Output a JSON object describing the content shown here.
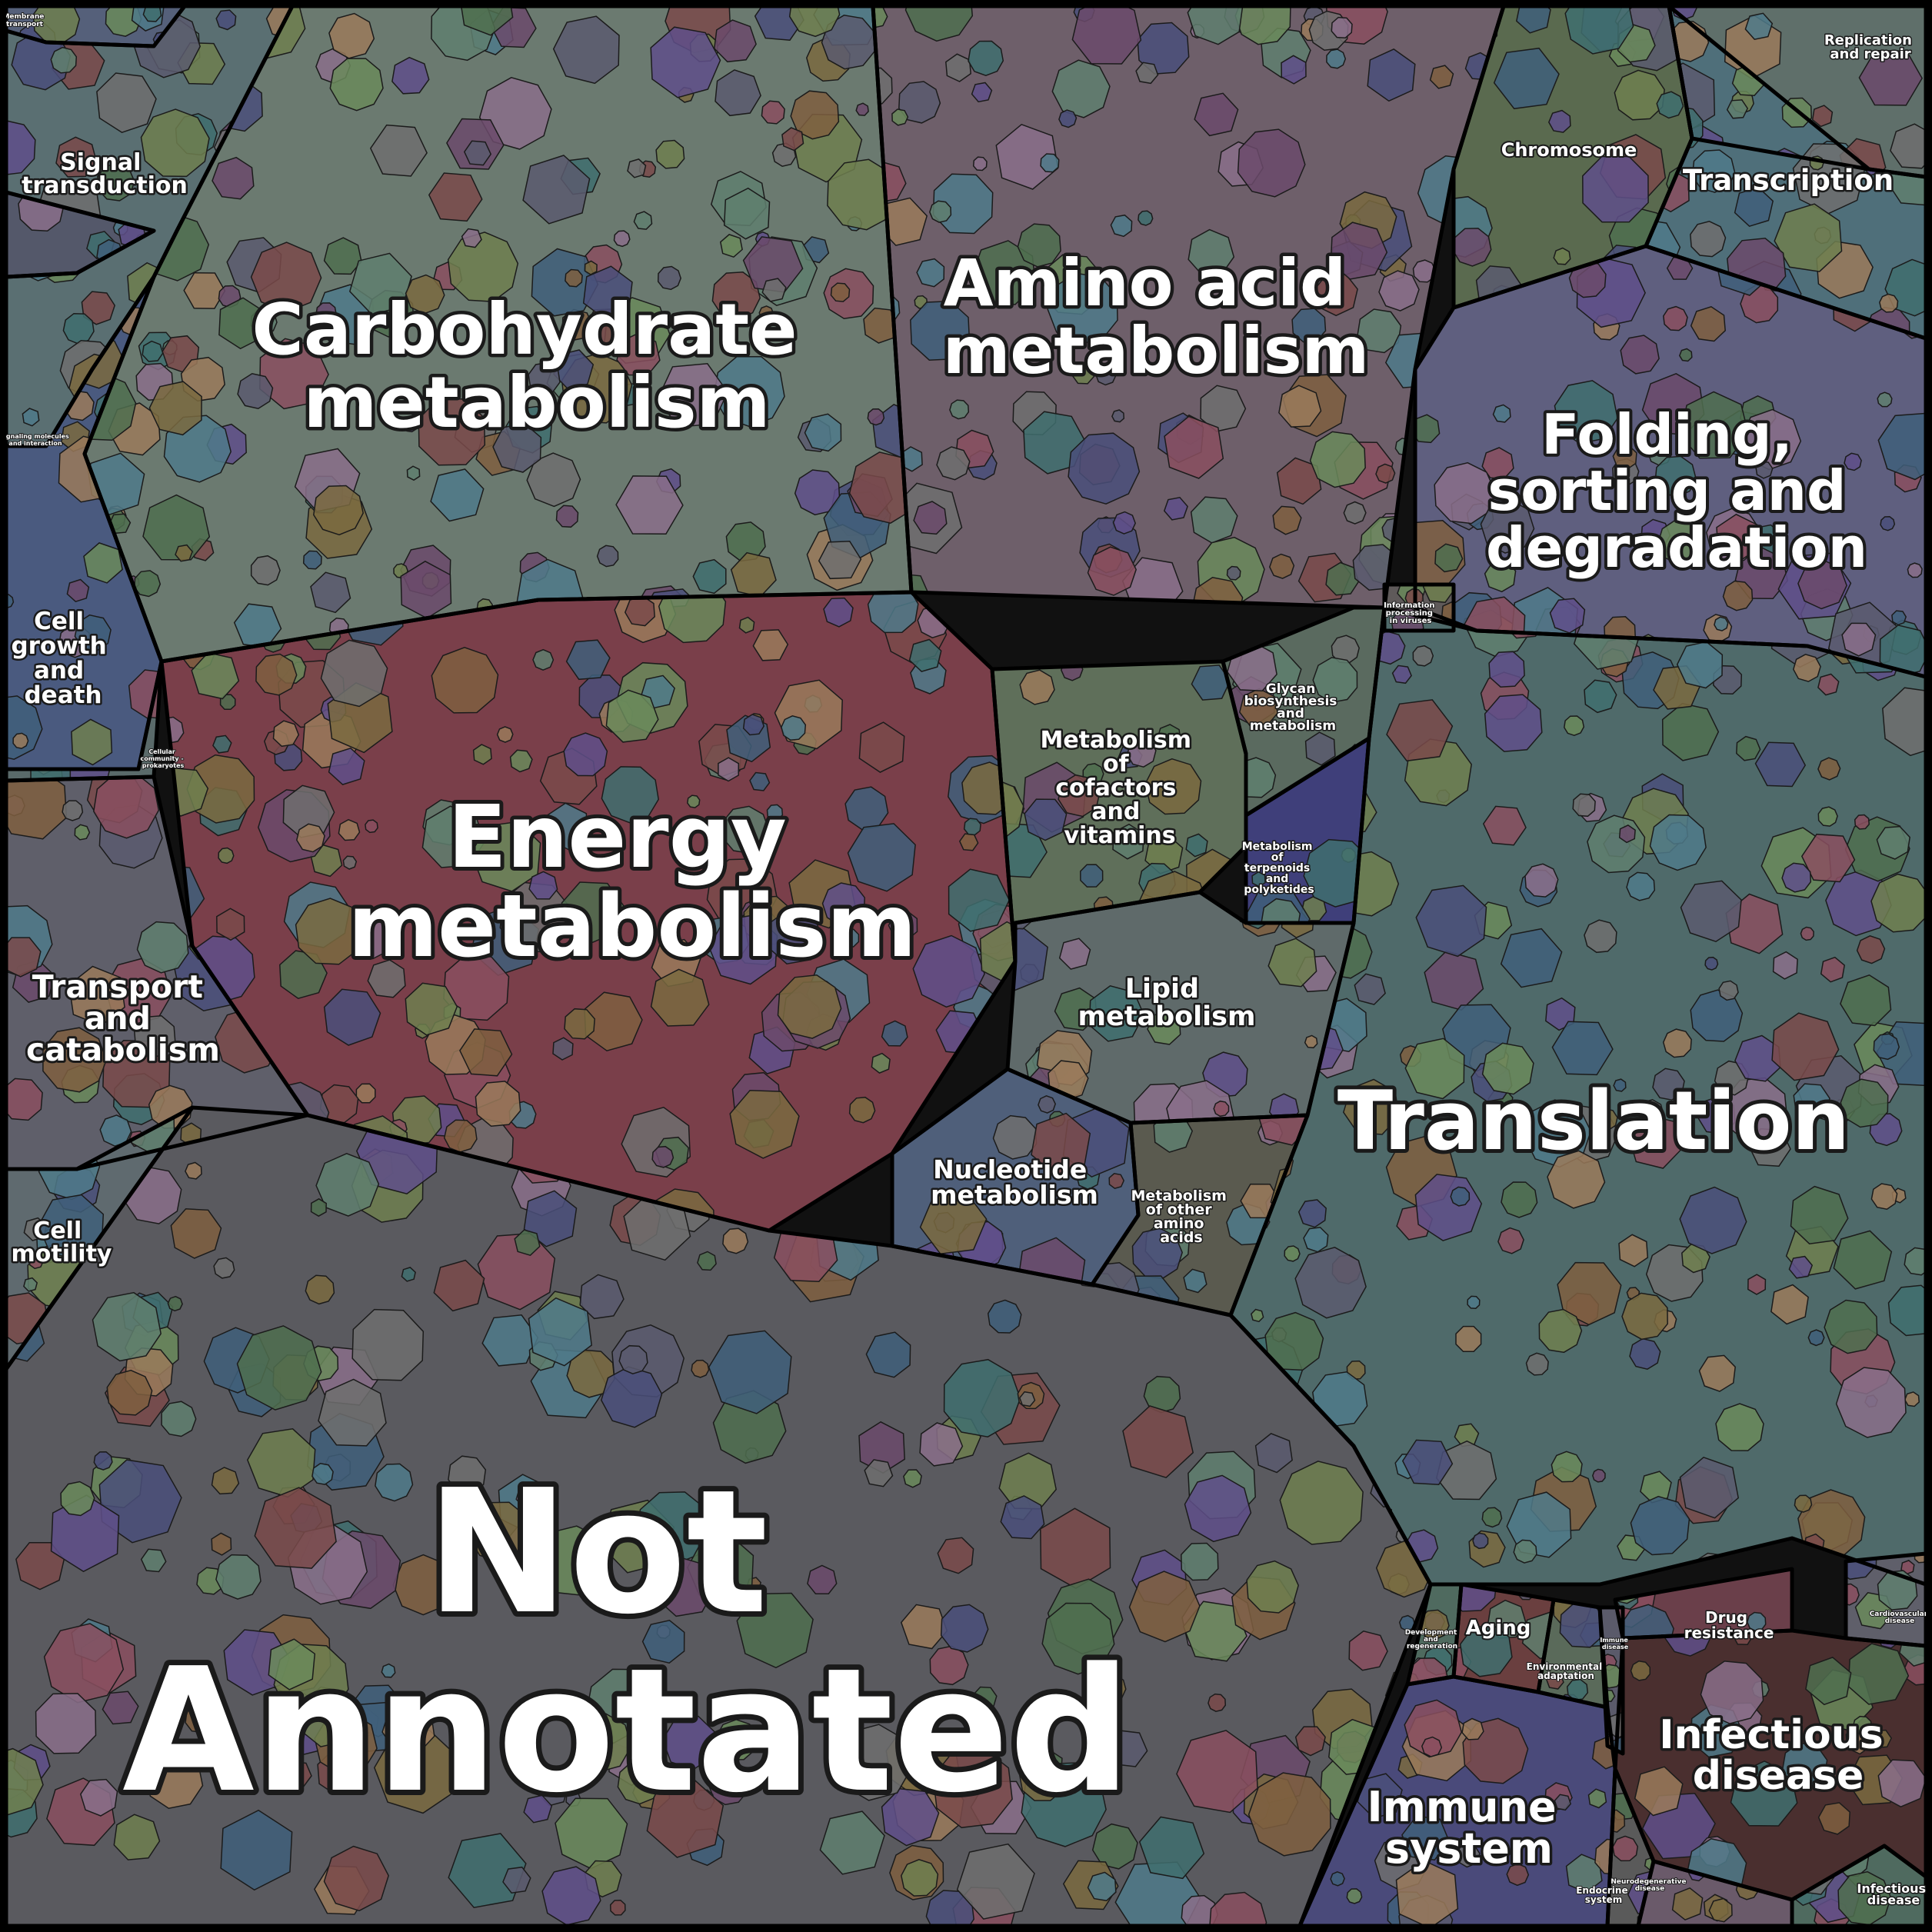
{
  "title": "",
  "palette": [
    "#4f6f4f",
    "#6b4a6b",
    "#3f5f7a",
    "#7a6a3f",
    "#5f7f6f",
    "#7a4a4a",
    "#4a4f7a",
    "#6f7f4f",
    "#8a6f8a",
    "#3f6f6f",
    "#7f5f3f",
    "#5a5a6f",
    "#6a8a5a",
    "#8a4f5f",
    "#4f7a8a",
    "#6f6f6f",
    "#9a7a5a",
    "#5f4f8a"
  ],
  "regions": [
    {
      "name": "Membrane transport",
      "label": "Membrane transport",
      "color": "#55607a"
    },
    {
      "name": "Signal transduction",
      "label": "Signal transduction",
      "color": "#5a6f72"
    },
    {
      "name": "Signaling molecules and interaction",
      "label": "Signaling molecules and interaction",
      "color": "#54586a"
    },
    {
      "name": "Carbohydrate metabolism",
      "label": "Carbohydrate metabolism",
      "color": "#6b7a70"
    },
    {
      "name": "Amino acid metabolism",
      "label": "Amino acid metabolism",
      "color": "#6e5f6a"
    },
    {
      "name": "Replication and repair",
      "label": "Replication and repair",
      "color": "#5f6f6a"
    },
    {
      "name": "Chromosome",
      "label": "Chromosome",
      "color": "#5a6a4f"
    },
    {
      "name": "Transcription",
      "label": "Transcription",
      "color": "#4f6f7a"
    },
    {
      "name": "Folding, sorting and degradation",
      "label": "Folding, sorting and degradation",
      "color": "#5f5f7f"
    },
    {
      "name": "Cell growth and death",
      "label": "Cell growth and death",
      "color": "#4a5a7f"
    },
    {
      "name": "Cellular community - prokaryotes",
      "label": "Cellular community - prokaryotes",
      "color": "#5a6a6a"
    },
    {
      "name": "Energy metabolism",
      "label": "Energy metabolism",
      "color": "#7a3f4a"
    },
    {
      "name": "Metabolism of cofactors and vitamins",
      "label": "Metabolism of cofactors and vitamins",
      "color": "#5f6f5a"
    },
    {
      "name": "Glycan biosynthesis and metabolism",
      "label": "Glycan biosynthesis and metabolism",
      "color": "#5a6a5f"
    },
    {
      "name": "Metabolism of terpenoids and polyketides",
      "label": "Metabolism of terpenoids and polyketides",
      "color": "#3f3f7a"
    },
    {
      "name": "Information processing in viruses",
      "label": "Information processing in viruses",
      "color": "#5f5a5a"
    },
    {
      "name": "Transport and catabolism",
      "label": "Transport and catabolism",
      "color": "#5f5f6a"
    },
    {
      "name": "Lipid metabolism",
      "label": "Lipid metabolism",
      "color": "#5f6a6a"
    },
    {
      "name": "Translation",
      "label": "Translation",
      "color": "#4f6a6a"
    },
    {
      "name": "Nucleotide metabolism",
      "label": "Nucleotide metabolism",
      "color": "#4f5f7a"
    },
    {
      "name": "Metabolism of other amino acids",
      "label": "Metabolism of other amino acids",
      "color": "#5a5a4f"
    },
    {
      "name": "Cell motility",
      "label": "Cell motility",
      "color": "#5f6a6f"
    },
    {
      "name": "Not Annotated",
      "label": "Not Annotated",
      "color": "#5a5a5f"
    },
    {
      "name": "Development and regeneration",
      "label": "Development and regeneration",
      "color": "#4f6a5f"
    },
    {
      "name": "Aging",
      "label": "Aging",
      "color": "#6a3f3f"
    },
    {
      "name": "Environmental adaptation",
      "label": "Environmental adaptation",
      "color": "#5a6a5a"
    },
    {
      "name": "Drug resistance",
      "label": "Drug resistance",
      "color": "#6a3f4a"
    },
    {
      "name": "Cardiovascular disease",
      "label": "Cardiovascular disease",
      "color": "#5f5f6a"
    },
    {
      "name": "Immune disease",
      "label": "Immune disease",
      "color": "#5a5a6a"
    },
    {
      "name": "Infectious disease (large)",
      "label": "Infectious disease",
      "color": "#4a2f2f"
    },
    {
      "name": "Immune system",
      "label": "Immune system",
      "color": "#4a4a7a"
    },
    {
      "name": "Endocrine system",
      "label": "Endocrine system",
      "color": "#5a5a5a"
    },
    {
      "name": "Neurodegenerative disease",
      "label": "Neurodegenerative disease",
      "color": "#6a5a6a"
    },
    {
      "name": "Infectious disease (small)",
      "label": "Infectious disease",
      "color": "#4f6a5f"
    }
  ]
}
